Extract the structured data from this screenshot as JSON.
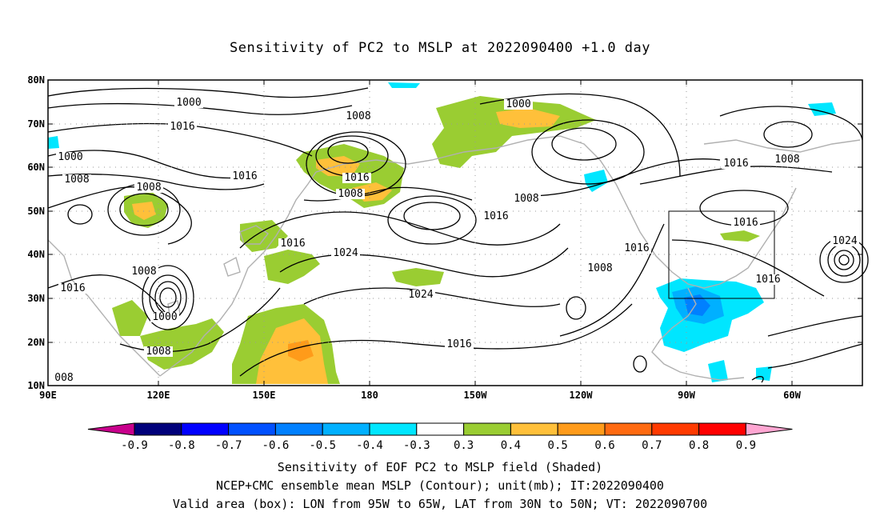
{
  "title": "Sensitivity of PC2 to MSLP at 2022090400 +1.0 day",
  "map": {
    "lon_labels": [
      "90E",
      "120E",
      "150E",
      "180",
      "150W",
      "120W",
      "90W",
      "60W"
    ],
    "lat_labels": [
      "80N",
      "70N",
      "60N",
      "50N",
      "40N",
      "30N",
      "20N",
      "10N"
    ],
    "valid_box": {
      "lon_from": "95W",
      "lon_to": "65W",
      "lat_from": "30N",
      "lat_to": "50N"
    },
    "contour_labels": [
      "1000",
      "1016",
      "1000",
      "1008",
      "1008",
      "1016",
      "1008",
      "1016",
      "1008",
      "1016",
      "1024",
      "1016",
      "1000",
      "1008",
      "1016",
      "1008",
      "1016",
      "1024",
      "1024",
      "1016",
      "1000",
      "1008",
      "1016",
      "1008",
      "1016",
      "1008",
      "1016",
      "008"
    ]
  },
  "colorbar": {
    "labels": [
      "-0.9",
      "-0.8",
      "-0.7",
      "-0.6",
      "-0.5",
      "-0.4",
      "-0.3",
      "0.3",
      "0.4",
      "0.5",
      "0.6",
      "0.7",
      "0.8",
      "0.9"
    ],
    "colors": [
      "#00007a",
      "#0000ff",
      "#0050ff",
      "#0080ff",
      "#00b0ff",
      "#00e6ff",
      "#ffffff",
      "#9acd32",
      "#ffc03a",
      "#ff9b1a",
      "#ff6a10",
      "#ff3a00",
      "#ff0000"
    ],
    "low_end_color": "#c8008c",
    "high_end_color": "#ffa6d2"
  },
  "captions": {
    "line1": "Sensitivity of EOF PC2 to MSLP field (Shaded)",
    "line2": "NCEP+CMC ensemble mean MSLP (Contour); unit(mb); IT:2022090400",
    "line3": "Valid area (box): LON from 95W to 65W, LAT from 30N to 50N; VT: 2022090700"
  }
}
